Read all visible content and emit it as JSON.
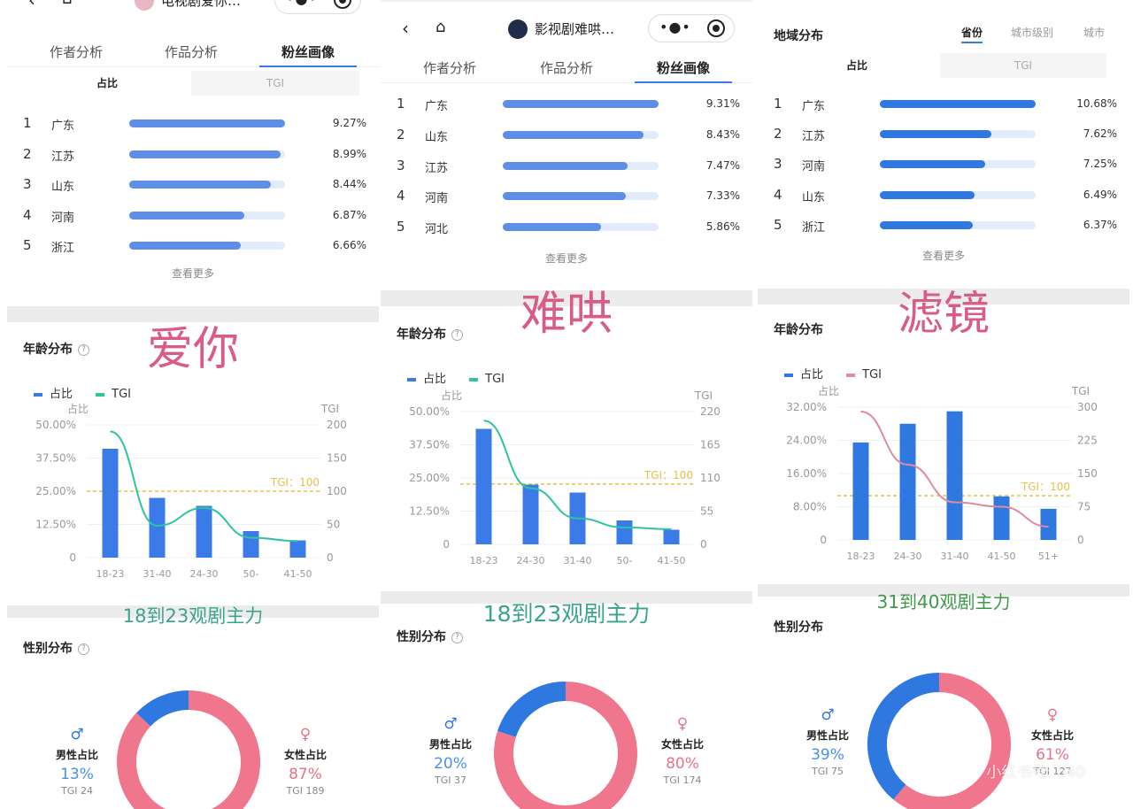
{
  "panels": [
    {
      "header": {
        "title": "电视剧爱你…"
      },
      "tabs": [
        "作者分析",
        "作品分析",
        "粉丝画像"
      ],
      "toggle": [
        "占比",
        "TGI"
      ],
      "regions": [
        {
          "rank": "1",
          "name": "广东",
          "pct": "9.27%"
        },
        {
          "rank": "2",
          "name": "江苏",
          "pct": "8.99%"
        },
        {
          "rank": "3",
          "name": "山东",
          "pct": "8.44%"
        },
        {
          "rank": "4",
          "name": "河南",
          "pct": "6.87%"
        },
        {
          "rank": "5",
          "name": "浙江",
          "pct": "6.66%"
        }
      ],
      "more": "查看更多",
      "label": "爱你",
      "age_title": "年龄分布",
      "legend": [
        "占比",
        "TGI"
      ],
      "note": "18到23观剧主力",
      "gender_title": "性别分布",
      "gender": {
        "male_label": "男性占比",
        "male_pct": "13%",
        "male_tgi": "TGI 24",
        "female_label": "女性占比",
        "female_pct": "87%",
        "female_tgi": "TGI 189"
      }
    },
    {
      "header": {
        "title": "影视剧难哄…"
      },
      "tabs": [
        "作者分析",
        "作品分析",
        "粉丝画像"
      ],
      "regions": [
        {
          "rank": "1",
          "name": "广东",
          "pct": "9.31%"
        },
        {
          "rank": "2",
          "name": "山东",
          "pct": "8.43%"
        },
        {
          "rank": "3",
          "name": "江苏",
          "pct": "7.47%"
        },
        {
          "rank": "4",
          "name": "河南",
          "pct": "7.33%"
        },
        {
          "rank": "5",
          "name": "河北",
          "pct": "5.86%"
        }
      ],
      "more": "查看更多",
      "label": "难哄",
      "age_title": "年龄分布",
      "legend": [
        "占比",
        "TGI"
      ],
      "note": "18到23观剧主力",
      "gender_title": "性别分布",
      "gender": {
        "male_label": "男性占比",
        "male_pct": "20%",
        "male_tgi": "TGI 37",
        "female_label": "女性占比",
        "female_pct": "80%",
        "female_tgi": "TGI 174"
      }
    },
    {
      "region_title": "地域分布",
      "subtabs": [
        "省份",
        "城市级别",
        "城市"
      ],
      "toggle": [
        "占比",
        "TGI"
      ],
      "regions": [
        {
          "rank": "1",
          "name": "广东",
          "pct": "10.68%"
        },
        {
          "rank": "2",
          "name": "江苏",
          "pct": "7.62%"
        },
        {
          "rank": "3",
          "name": "河南",
          "pct": "7.25%"
        },
        {
          "rank": "4",
          "name": "山东",
          "pct": "6.49%"
        },
        {
          "rank": "5",
          "name": "浙江",
          "pct": "6.37%"
        }
      ],
      "more": "查看更多",
      "label": "滤镜",
      "age_title": "年龄分布",
      "legend": [
        "占比",
        "TGI"
      ],
      "note": "31到40观剧主力",
      "gender_title": "性别分布",
      "gender": {
        "male_label": "男性占比",
        "male_pct": "39%",
        "male_tgi": "TGI 75",
        "female_label": "女性占比",
        "female_pct": "61%",
        "female_tgi": "TGI 127"
      },
      "watermark": "小红书号: 640"
    }
  ],
  "colors": {
    "bar": "#3b7be8",
    "tgi_green": "#2ec4a0",
    "tgi_pink": "#e08a9e",
    "ref_line": "#e8c04a",
    "male": "#2f78e0",
    "female": "#f0768e"
  },
  "chart_data": [
    {
      "type": "bar",
      "categories": [
        "18-23",
        "31-40",
        "24-30",
        "50-",
        "41-50"
      ],
      "series": [
        {
          "name": "占比",
          "values": [
            41.0,
            22.5,
            19.5,
            10.0,
            6.5
          ]
        },
        {
          "name": "TGI",
          "values": [
            190,
            48,
            75,
            30,
            25
          ]
        }
      ],
      "y_left_label": "占比",
      "y_right_label": "TGI",
      "y_left_ticks": [
        "0",
        "12.50%",
        "25.00%",
        "37.50%",
        "50.00%"
      ],
      "y_right_ticks": [
        "0",
        "50",
        "100",
        "150",
        "200"
      ],
      "ylim": [
        0,
        50
      ],
      "y2lim": [
        0,
        200
      ],
      "ref_value": 100,
      "ref_label": "TGI：100"
    },
    {
      "type": "bar",
      "categories": [
        "18-23",
        "24-30",
        "31-40",
        "50-",
        "41-50"
      ],
      "series": [
        {
          "name": "占比",
          "values": [
            43.5,
            22.5,
            19.5,
            9.0,
            5.5
          ]
        },
        {
          "name": "TGI",
          "values": [
            205,
            93,
            43,
            28,
            25
          ]
        }
      ],
      "y_left_label": "占比",
      "y_right_label": "TGI",
      "y_left_ticks": [
        "0",
        "12.50%",
        "25.00%",
        "37.50%",
        "50.00%"
      ],
      "y_right_ticks": [
        "0",
        "55",
        "110",
        "165",
        "220"
      ],
      "ylim": [
        0,
        50
      ],
      "y2lim": [
        0,
        220
      ],
      "ref_value": 100,
      "ref_label": "TGI：100"
    },
    {
      "type": "bar",
      "categories": [
        "18-23",
        "24-30",
        "31-40",
        "41-50",
        "51+"
      ],
      "series": [
        {
          "name": "占比",
          "values": [
            23.5,
            28.0,
            31.0,
            10.5,
            7.5
          ]
        },
        {
          "name": "TGI",
          "values": [
            290,
            170,
            85,
            75,
            30
          ]
        }
      ],
      "y_left_label": "占比",
      "y_right_label": "TGI",
      "y_left_ticks": [
        "0",
        "8.00%",
        "16.00%",
        "24.00%",
        "32.00%"
      ],
      "y_right_ticks": [
        "0",
        "75",
        "150",
        "225",
        "300"
      ],
      "ylim": [
        0,
        32
      ],
      "y2lim": [
        0,
        300
      ],
      "ref_value": 100,
      "ref_label": "TGI：100"
    },
    {
      "type": "pie",
      "categories": [
        "男性占比",
        "女性占比"
      ],
      "values": [
        13,
        87
      ]
    },
    {
      "type": "pie",
      "categories": [
        "男性占比",
        "女性占比"
      ],
      "values": [
        20,
        80
      ]
    },
    {
      "type": "pie",
      "categories": [
        "男性占比",
        "女性占比"
      ],
      "values": [
        39,
        61
      ]
    }
  ]
}
